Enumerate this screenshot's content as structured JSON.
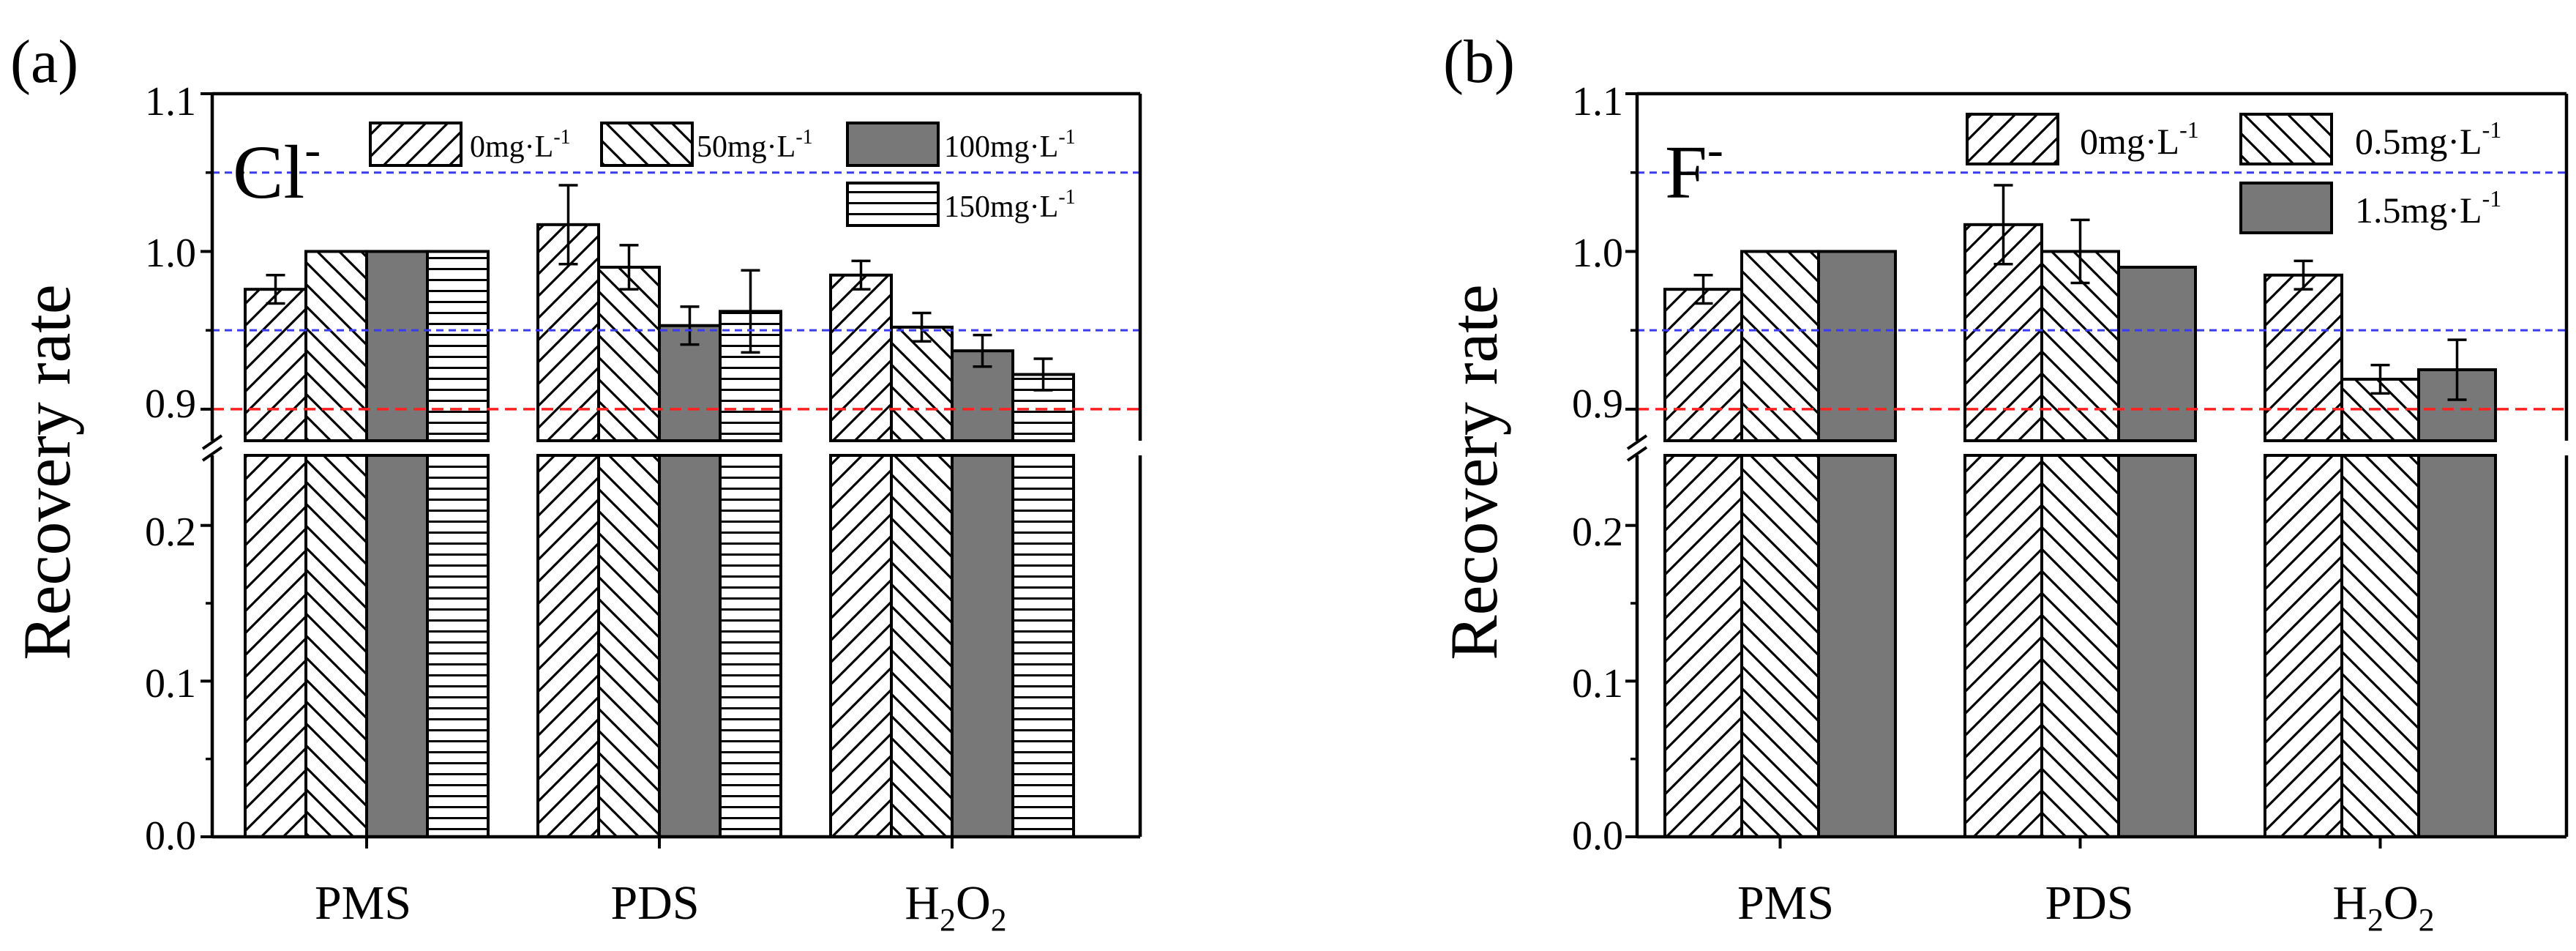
{
  "figure": {
    "colors": {
      "blue_line": "#3a3af0",
      "red_line": "#ff2020",
      "dark_fill": "#787878"
    }
  },
  "chart_data": [
    {
      "panel_label": "(a)",
      "type": "bar",
      "ion_label": "Cl",
      "ion_charge": "-",
      "ylabel": "Recovery rate",
      "categories": [
        {
          "text": "PMS",
          "sub": "",
          "tail": ""
        },
        {
          "text": "PDS",
          "sub": "",
          "tail": ""
        },
        {
          "text": "H",
          "sub": "2",
          "tail": "O",
          "sub2": "2"
        }
      ],
      "yticks_upper": [
        "0.9",
        "1.0",
        "1.1"
      ],
      "yticks_lower": [
        "0.0",
        "0.1",
        "0.2"
      ],
      "ylim_upper": [
        0.88,
        1.1
      ],
      "ylim_lower": [
        0.0,
        0.245
      ],
      "reference_lines": [
        {
          "value": 1.05,
          "color": "blue"
        },
        {
          "value": 0.95,
          "color": "blue"
        },
        {
          "value": 0.9,
          "color": "red"
        }
      ],
      "series": [
        {
          "name": "0mg",
          "unit": "·L",
          "exp": "-1",
          "pattern": "forward",
          "values": [
            0.976,
            1.017,
            0.985
          ],
          "errors": [
            0.009,
            0.025,
            0.009
          ]
        },
        {
          "name": "50mg",
          "unit": "·L",
          "exp": "-1",
          "pattern": "back",
          "values": [
            1.0,
            0.99,
            0.952
          ],
          "errors": [
            0.0,
            0.014,
            0.009
          ]
        },
        {
          "name": "100mg",
          "unit": "·L",
          "exp": "-1",
          "pattern": "solid",
          "values": [
            1.0,
            0.953,
            0.937
          ],
          "errors": [
            0.0,
            0.012,
            0.01
          ]
        },
        {
          "name": "150mg",
          "unit": "·L",
          "exp": "-1",
          "pattern": "horizontal",
          "values": [
            1.0,
            0.962,
            0.922
          ],
          "errors": [
            0.0,
            0.026,
            0.01
          ]
        }
      ]
    },
    {
      "panel_label": "(b)",
      "type": "bar",
      "ion_label": "F",
      "ion_charge": "-",
      "ylabel": "Recovery rate",
      "categories": [
        {
          "text": "PMS",
          "sub": "",
          "tail": ""
        },
        {
          "text": "PDS",
          "sub": "",
          "tail": ""
        },
        {
          "text": "H",
          "sub": "2",
          "tail": "O",
          "sub2": "2"
        }
      ],
      "yticks_upper": [
        "0.9",
        "1.0",
        "1.1"
      ],
      "yticks_lower": [
        "0.0",
        "0.1",
        "0.2"
      ],
      "ylim_upper": [
        0.88,
        1.1
      ],
      "ylim_lower": [
        0.0,
        0.245
      ],
      "reference_lines": [
        {
          "value": 1.05,
          "color": "blue"
        },
        {
          "value": 0.95,
          "color": "blue"
        },
        {
          "value": 0.9,
          "color": "red"
        }
      ],
      "series": [
        {
          "name": "0mg",
          "unit": "·L",
          "exp": "-1",
          "pattern": "forward",
          "values": [
            0.976,
            1.017,
            0.985
          ],
          "errors": [
            0.009,
            0.025,
            0.009
          ]
        },
        {
          "name": "0.5mg",
          "unit": "·L",
          "exp": "-1",
          "pattern": "back",
          "values": [
            1.0,
            1.0,
            0.919
          ],
          "errors": [
            0.0,
            0.02,
            0.009
          ]
        },
        {
          "name": "1.5mg",
          "unit": "·L",
          "exp": "-1",
          "pattern": "solid",
          "values": [
            1.0,
            0.99,
            0.925
          ],
          "errors": [
            0.0,
            0.0,
            0.019
          ]
        }
      ]
    }
  ]
}
